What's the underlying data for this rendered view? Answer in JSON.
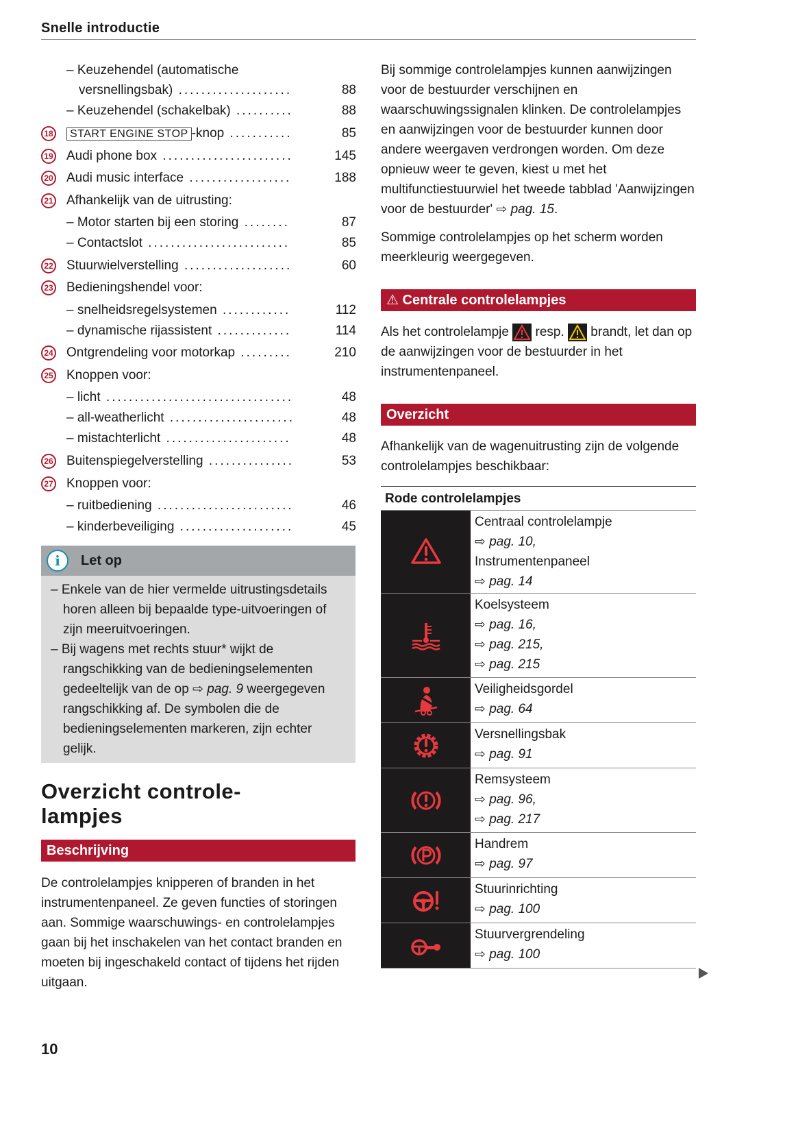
{
  "header": {
    "title": "Snelle introductie"
  },
  "toc": [
    {
      "num": "",
      "label": "– Keuzehendel (automatische",
      "page": "",
      "sub": true
    },
    {
      "num": "",
      "label": "versnellingsbak)",
      "page": "88",
      "sub": true,
      "indent": true
    },
    {
      "num": "",
      "label": "– Keuzehendel (schakelbak)",
      "page": "88",
      "sub": true
    },
    {
      "num": "18",
      "kbd": "START ENGINE STOP",
      "label": "-knop",
      "page": "85"
    },
    {
      "num": "19",
      "label": "Audi phone box",
      "page": "145"
    },
    {
      "num": "20",
      "label": "Audi music interface",
      "page": "188"
    },
    {
      "num": "21",
      "label": "Afhankelijk van de uitrusting:",
      "page": "",
      "nodots": true
    },
    {
      "num": "",
      "label": "– Motor starten bij een storing",
      "page": "87",
      "sub": true
    },
    {
      "num": "",
      "label": "– Contactslot",
      "page": "85",
      "sub": true
    },
    {
      "num": "22",
      "label": "Stuurwielverstelling",
      "page": "60"
    },
    {
      "num": "23",
      "label": "Bedieningshendel voor:",
      "page": "",
      "nodots": true
    },
    {
      "num": "",
      "label": "– snelheidsregelsystemen",
      "page": "112",
      "sub": true
    },
    {
      "num": "",
      "label": "– dynamische rijassistent",
      "page": "114",
      "sub": true
    },
    {
      "num": "24",
      "label": "Ontgrendeling voor motorkap",
      "page": "210"
    },
    {
      "num": "25",
      "label": "Knoppen voor:",
      "page": "",
      "nodots": true
    },
    {
      "num": "",
      "label": "– licht",
      "page": "48",
      "sub": true
    },
    {
      "num": "",
      "label": "– all-weatherlicht",
      "page": "48",
      "sub": true
    },
    {
      "num": "",
      "label": "– mistachterlicht",
      "page": "48",
      "sub": true
    },
    {
      "num": "26",
      "label": "Buitenspiegelverstelling",
      "page": "53"
    },
    {
      "num": "27",
      "label": "Knoppen voor:",
      "page": "",
      "nodots": true
    },
    {
      "num": "",
      "label": "– ruitbediening",
      "page": "46",
      "sub": true
    },
    {
      "num": "",
      "label": "– kinderbeveiliging",
      "page": "45",
      "sub": true
    }
  ],
  "note": {
    "title": "Let op",
    "items": [
      "– Enkele van de hier vermelde uitrustingsdetails horen alleen bij bepaalde type-uitvoeringen of zijn meeruitvoeringen.",
      [
        "– Bij wagens met rechts stuur* wijkt de rangschikking van de bedieningselementen gedeeltelijk van de op ",
        "⇨ pag. 9",
        " weergegeven rangschikking af. De symbolen die de bedieningselementen markeren, zijn echter gelijk."
      ]
    ]
  },
  "section": {
    "title": "Overzicht controle-lampjes",
    "title_line1": "Overzicht controle-",
    "title_line2": "lampjes"
  },
  "beschrijving": {
    "title": "Beschrijving",
    "text": "De controlelampjes knipperen of branden in het instrumentenpaneel. Ze geven functies of storingen aan. Sommige waarschuwings- en controlelampjes gaan bij het inschakelen van het contact branden en moeten bij ingeschakeld contact of tijdens het rijden uitgaan."
  },
  "right": {
    "p1": "Bij sommige controlelampjes kunnen aanwijzingen voor de bestuurder verschijnen en waarschuwingssignalen klinken. De controlelampjes en aanwijzingen voor de bestuurder kunnen door andere weergaven verdrongen worden. Om deze opnieuw weer te geven, kiest u met het multifunctiestuurwiel het tweede tabblad 'Aanwijzingen voor de bestuurder' ",
    "p1_ref": "⇨ pag. 15",
    "p1_end": ".",
    "p2": "Sommige controlelampjes op het scherm worden meerkleurig weergegeven.",
    "warn_title": "Centrale controlelampjes",
    "warn_a": "Als het controlelampje ",
    "warn_b": " resp. ",
    "warn_c": " brandt, let dan op de aanwijzingen voor de bestuurder in het instrumentenpaneel.",
    "overzicht_title": "Overzicht",
    "overzicht_text": "Afhankelijk van de wagenuitrusting zijn de volgende controlelampjes beschikbaar:"
  },
  "table": {
    "header": "Rode controlelampjes",
    "rows": [
      {
        "icon": "warning-triangle-icon",
        "lines": [
          "Centraal controlelampje",
          "⇨ pag. 10,",
          "Instrumentenpaneel",
          "⇨ pag. 14"
        ]
      },
      {
        "icon": "coolant-temperature-icon",
        "lines": [
          "Koelsysteem",
          "⇨ pag. 16,",
          "⇨ pag. 215,",
          "⇨ pag. 215"
        ]
      },
      {
        "icon": "seatbelt-icon",
        "lines": [
          "Veiligheidsgordel",
          "⇨ pag. 64"
        ]
      },
      {
        "icon": "gearbox-icon",
        "lines": [
          "Versnellingsbak",
          "⇨ pag. 91"
        ]
      },
      {
        "icon": "brake-system-icon",
        "lines": [
          "Remsysteem",
          "⇨ pag. 96,",
          "⇨ pag. 217"
        ]
      },
      {
        "icon": "parking-brake-icon",
        "lines": [
          "Handrem",
          "⇨ pag. 97"
        ]
      },
      {
        "icon": "steering-icon",
        "lines": [
          "Stuurinrichting",
          "⇨ pag. 100"
        ]
      },
      {
        "icon": "steering-lock-icon",
        "lines": [
          "Stuurvergrendeling",
          "⇨ pag. 100"
        ]
      }
    ]
  },
  "colors": {
    "accent": "#b0182f",
    "lamp_red": "#e8393f",
    "lamp_bg": "#1c1a1b",
    "info_blue": "#1b8fb0",
    "warn_yellow": "#f2c500"
  },
  "page_number": "10"
}
